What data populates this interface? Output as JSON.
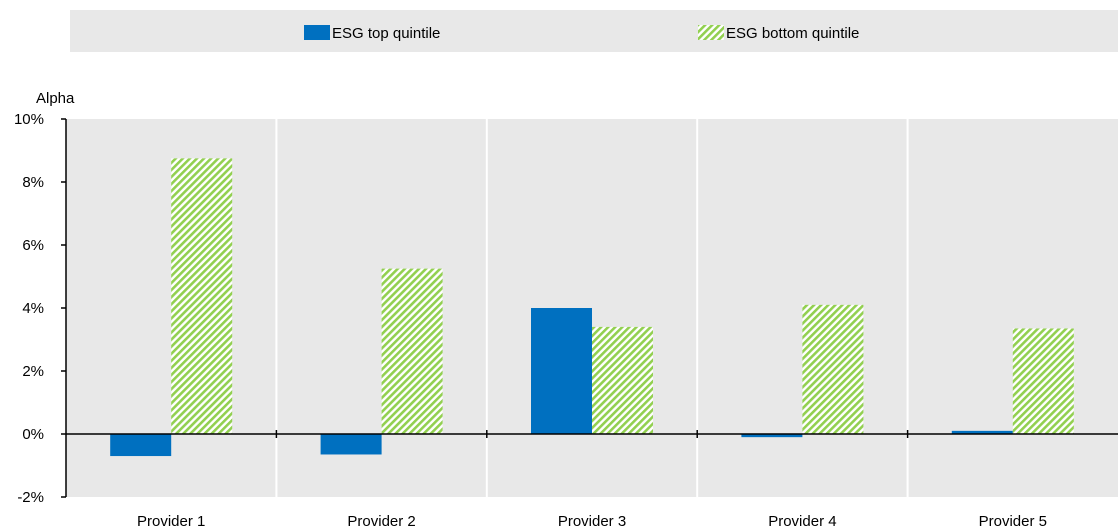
{
  "chart_data": {
    "type": "bar",
    "ylabel": "Alpha",
    "ylim": [
      -2,
      10
    ],
    "yticks": [
      {
        "value": -2,
        "label": "-2%"
      },
      {
        "value": 0,
        "label": "0%"
      },
      {
        "value": 2,
        "label": "2%"
      },
      {
        "value": 4,
        "label": "4%"
      },
      {
        "value": 6,
        "label": "6%"
      },
      {
        "value": 8,
        "label": "8%"
      },
      {
        "value": 10,
        "label": "10%"
      }
    ],
    "categories": [
      "Provider 1",
      "Provider 2",
      "Provider 3",
      "Provider 4",
      "Provider 5"
    ],
    "series": [
      {
        "name": "ESG top quintile",
        "color": "#0070C0",
        "pattern": "solid",
        "values": [
          -0.7,
          -0.65,
          4.0,
          -0.1,
          0.1
        ]
      },
      {
        "name": "ESG bottom quintile",
        "color": "#92D050",
        "pattern": "diagonal-hatch",
        "values": [
          8.75,
          5.25,
          3.4,
          4.1,
          3.35
        ]
      }
    ],
    "legend_position": "top",
    "grid": "vertical separators between categories",
    "plot_background": "#E8E8E8"
  }
}
